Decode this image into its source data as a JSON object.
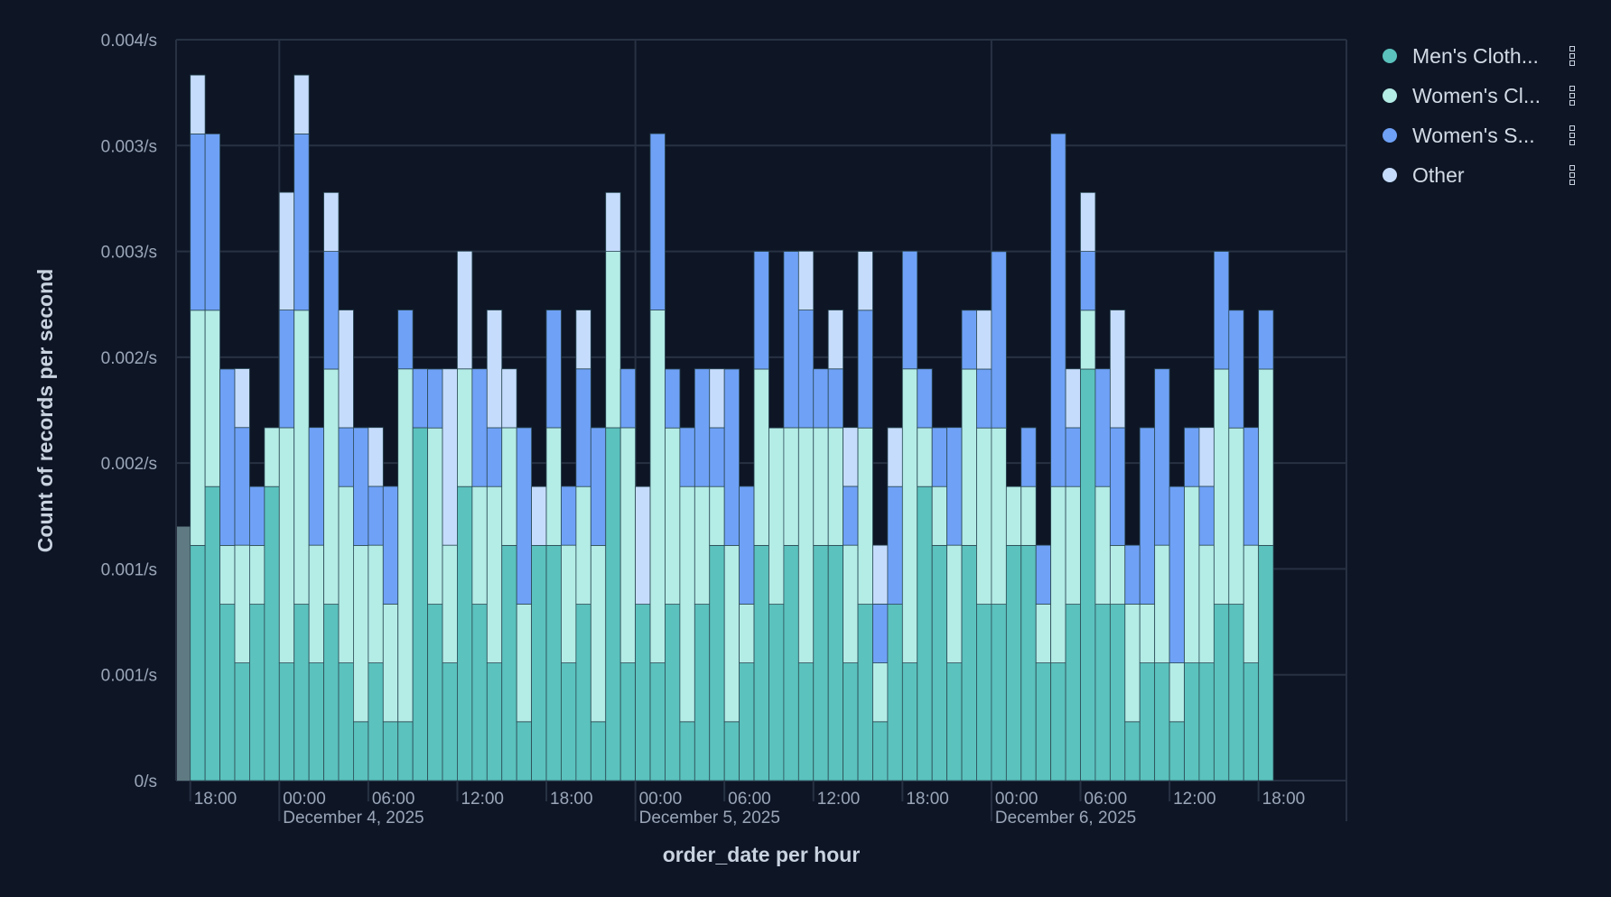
{
  "chart_data": {
    "type": "bar",
    "stacked": true,
    "xlabel": "order_date per hour",
    "ylabel": "Count of records per second",
    "x": {
      "start": "2025-12-03 18:00",
      "end": "2025-12-06 18:00",
      "interval": "hour"
    },
    "ylim": [
      0,
      0.0035
    ],
    "y_ticks": [
      {
        "value": 0,
        "label": "0/s"
      },
      {
        "value": 0.0005,
        "label": "0.001/s"
      },
      {
        "value": 0.001,
        "label": "0.001/s"
      },
      {
        "value": 0.0015,
        "label": "0.002/s"
      },
      {
        "value": 0.002,
        "label": "0.002/s"
      },
      {
        "value": 0.0025,
        "label": "0.003/s"
      },
      {
        "value": 0.003,
        "label": "0.003/s"
      },
      {
        "value": 0.0035,
        "label": "0.004/s"
      }
    ],
    "x_ticks": [
      {
        "label": "18:00",
        "date": ""
      },
      {
        "label": "00:00",
        "date": "December 4, 2025"
      },
      {
        "label": "06:00",
        "date": ""
      },
      {
        "label": "12:00",
        "date": ""
      },
      {
        "label": "18:00",
        "date": ""
      },
      {
        "label": "00:00",
        "date": "December 5, 2025"
      },
      {
        "label": "06:00",
        "date": ""
      },
      {
        "label": "12:00",
        "date": ""
      },
      {
        "label": "18:00",
        "date": ""
      },
      {
        "label": "00:00",
        "date": "December 6, 2025"
      },
      {
        "label": "06:00",
        "date": ""
      },
      {
        "label": "12:00",
        "date": ""
      },
      {
        "label": "18:00",
        "date": ""
      }
    ],
    "grid": true,
    "legend_position": "right",
    "partial_bucket": {
      "hour": "2025-12-03 17:00",
      "value": 0.0012
    },
    "series": [
      {
        "name": "Men's Cloth...",
        "color": "#5bc2bd",
        "values": [
          0.001111,
          0.001389,
          0.000833,
          0.000556,
          0.000833,
          0.001389,
          0.000556,
          0.000833,
          0.000556,
          0.000833,
          0.000556,
          0.000278,
          0.000556,
          0.000278,
          0.000278,
          0.001667,
          0.000833,
          0.000556,
          0.001389,
          0.000833,
          0.000556,
          0.001111,
          0.000278,
          0.001111,
          0.001111,
          0.000556,
          0.000833,
          0.000278,
          0.001667,
          0.000556,
          0.000833,
          0.000556,
          0.000833,
          0.000278,
          0.000833,
          0.001111,
          0.000278,
          0.000556,
          0.001111,
          0.000833,
          0.001111,
          0.000556,
          0.001111,
          0.001111,
          0.000556,
          0.000833,
          0.000278,
          0.000833,
          0.000556,
          0.001389,
          0.001111,
          0.000556,
          0.001111,
          0.000833,
          0.000833,
          0.001111,
          0.001111,
          0.000556,
          0.000556,
          0.000833,
          0.001944,
          0.000833,
          0.000833,
          0.000278,
          0.000556,
          0.000556,
          0.000278,
          0.000556,
          0.000556,
          0.000833,
          0.000833,
          0.000556,
          0.001111
        ]
      },
      {
        "name": "Women's Cl...",
        "color": "#b4ece6",
        "values": [
          0.001111,
          0.000833,
          0.000278,
          0.000556,
          0.000278,
          0.000278,
          0.001111,
          0.001389,
          0.000556,
          0.001111,
          0.000833,
          0.000833,
          0.000556,
          0.000556,
          0.001667,
          0,
          0.000833,
          0.000556,
          0.000556,
          0.000556,
          0.000833,
          0.000556,
          0.000556,
          0,
          0.000556,
          0.000556,
          0.000556,
          0.000833,
          0.000833,
          0.001111,
          0,
          0.001667,
          0.000833,
          0.001111,
          0.000556,
          0.000278,
          0.000833,
          0.000278,
          0.000833,
          0.000833,
          0.000556,
          0.001111,
          0.000556,
          0.000556,
          0.000556,
          0.000833,
          0.000278,
          0,
          0.001389,
          0.000278,
          0.000278,
          0.000556,
          0.000833,
          0.000833,
          0.000833,
          0.000278,
          0.000278,
          0.000278,
          0.000833,
          0.000556,
          0.000278,
          0.000556,
          0.000278,
          0.000556,
          0.000278,
          0.000556,
          0.000278,
          0.000833,
          0.000556,
          0.001111,
          0.000833,
          0.000556,
          0.000833
        ]
      },
      {
        "name": "Women's S...",
        "color": "#6fa1f7",
        "values": [
          0.000833,
          0.000833,
          0.000833,
          0.000556,
          0.000278,
          0,
          0.000556,
          0.000833,
          0.000556,
          0.000556,
          0.000278,
          0.000556,
          0.000278,
          0.000556,
          0.000278,
          0.000278,
          0.000278,
          0,
          0,
          0.000556,
          0.000278,
          0,
          0.000833,
          0,
          0.000556,
          0.000278,
          0.000556,
          0.000556,
          0,
          0.000278,
          0,
          0.000833,
          0.000278,
          0.000278,
          0.000556,
          0.000278,
          0.000833,
          0.000556,
          0.000556,
          0,
          0.000833,
          0.000556,
          0.000278,
          0.000278,
          0.000278,
          0.000556,
          0.000278,
          0.000556,
          0.000556,
          0.000278,
          0.000278,
          0.000556,
          0.000278,
          0.000278,
          0.000833,
          0,
          0.000278,
          0.000278,
          0.001667,
          0.000278,
          0.000278,
          0.000556,
          0.000556,
          0.000278,
          0.000833,
          0.000833,
          0.000833,
          0.000278,
          0.000278,
          0.000556,
          0.000556,
          0.000556,
          0.000278
        ]
      },
      {
        "name": "Other",
        "color": "#c6dcfd",
        "values": [
          0.000278,
          0,
          0,
          0.000278,
          0,
          0,
          0.000556,
          0.000278,
          0,
          0.000278,
          0.000556,
          0,
          0.000278,
          0,
          0,
          0,
          0,
          0.000833,
          0.000556,
          0,
          0.000556,
          0.000278,
          0,
          0.000278,
          0,
          0,
          0.000278,
          0,
          0.000278,
          0,
          0.000556,
          0,
          0,
          0,
          0,
          0.000278,
          0,
          0,
          0,
          0,
          0,
          0.000278,
          0,
          0.000278,
          0.000278,
          0.000278,
          0.000278,
          0.000278,
          0,
          0,
          0,
          0,
          0,
          0.000278,
          0,
          0,
          0,
          0,
          0,
          0.000278,
          0.000278,
          0,
          0.000556,
          0,
          0,
          0,
          0,
          0,
          0.000278,
          0,
          0,
          0,
          0
        ]
      }
    ]
  },
  "legend": {
    "items": [
      {
        "label": "Men's Cloth...",
        "icon": "kebab-menu-icon"
      },
      {
        "label": "Women's Cl...",
        "icon": "kebab-menu-icon"
      },
      {
        "label": "Women's S...",
        "icon": "kebab-menu-icon"
      },
      {
        "label": "Other",
        "icon": "kebab-menu-icon"
      }
    ]
  },
  "colors": {
    "background": "#0e1626",
    "grid": "#273142",
    "partial_bucket": "#5f7a82"
  }
}
